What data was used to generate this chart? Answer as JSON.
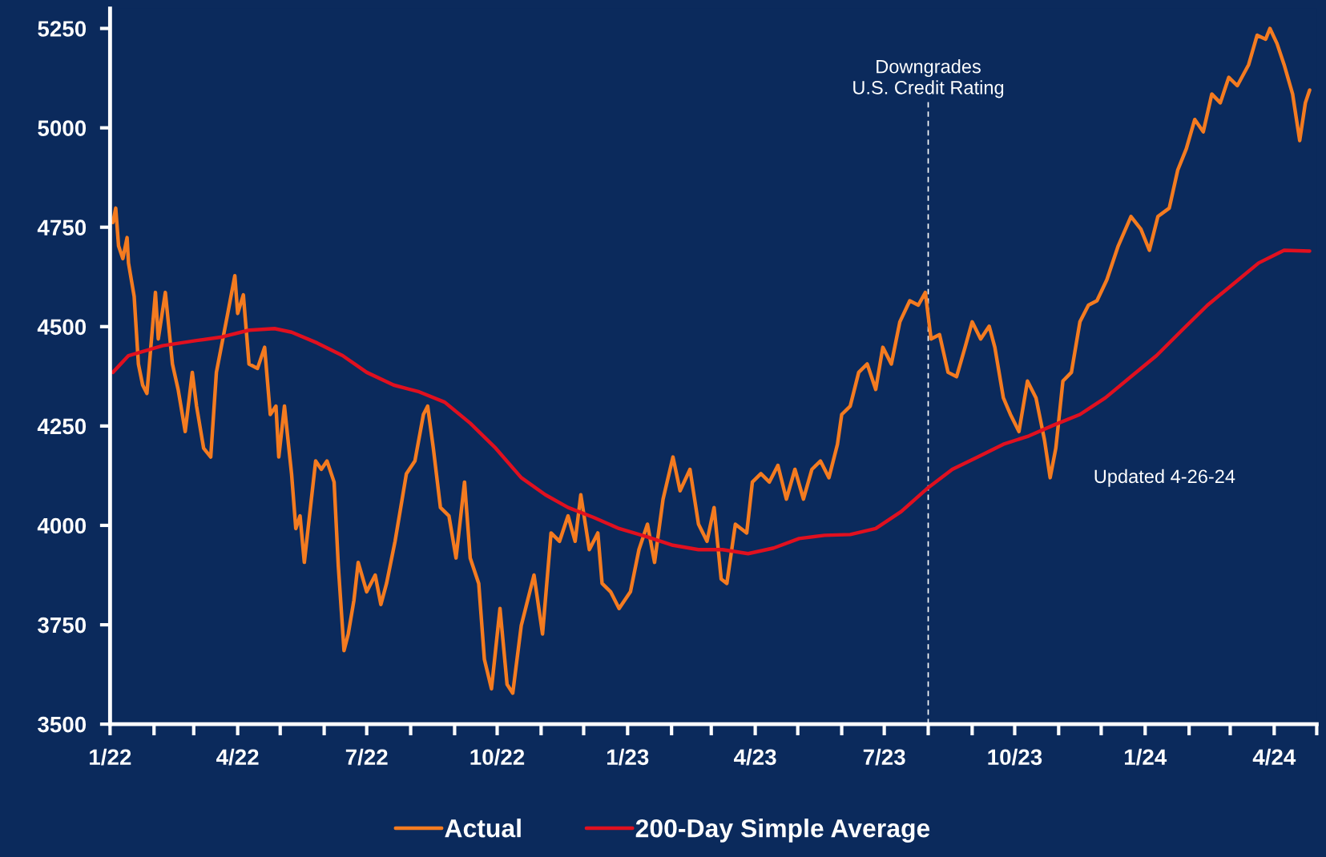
{
  "chart_data": {
    "type": "line",
    "xlim": [
      "2022-01-01",
      "2024-05-01"
    ],
    "ylim": [
      3500,
      5300
    ],
    "yticks": [
      3500,
      3750,
      4000,
      4250,
      4500,
      4750,
      5000,
      5250
    ],
    "xticks": [
      {
        "value": "2022-01-01",
        "label": "1/22"
      },
      {
        "value": "2022-02-01",
        "label": null
      },
      {
        "value": "2022-03-01",
        "label": null
      },
      {
        "value": "2022-04-01",
        "label": "4/22"
      },
      {
        "value": "2022-05-01",
        "label": null
      },
      {
        "value": "2022-06-01",
        "label": null
      },
      {
        "value": "2022-07-01",
        "label": "7/22"
      },
      {
        "value": "2022-08-01",
        "label": null
      },
      {
        "value": "2022-09-01",
        "label": null
      },
      {
        "value": "2022-10-01",
        "label": "10/22"
      },
      {
        "value": "2022-11-01",
        "label": null
      },
      {
        "value": "2022-12-01",
        "label": null
      },
      {
        "value": "2023-01-01",
        "label": "1/23"
      },
      {
        "value": "2023-02-01",
        "label": null
      },
      {
        "value": "2023-03-01",
        "label": null
      },
      {
        "value": "2023-04-01",
        "label": "4/23"
      },
      {
        "value": "2023-05-01",
        "label": null
      },
      {
        "value": "2023-06-01",
        "label": null
      },
      {
        "value": "2023-07-01",
        "label": "7/23"
      },
      {
        "value": "2023-08-01",
        "label": null
      },
      {
        "value": "2023-09-01",
        "label": null
      },
      {
        "value": "2023-10-01",
        "label": "10/23"
      },
      {
        "value": "2023-11-01",
        "label": null
      },
      {
        "value": "2023-12-01",
        "label": null
      },
      {
        "value": "2024-01-01",
        "label": "1/24"
      },
      {
        "value": "2024-02-01",
        "label": null
      },
      {
        "value": "2024-03-01",
        "label": null
      },
      {
        "value": "2024-04-01",
        "label": "4/24"
      },
      {
        "value": "2024-05-01",
        "label": null
      }
    ],
    "grid": false,
    "legend": "bottom",
    "series": [
      {
        "name": "Actual",
        "color": "#f47b20",
        "x": [
          "2022-01-03",
          "2022-01-05",
          "2022-01-07",
          "2022-01-10",
          "2022-01-13",
          "2022-01-14",
          "2022-01-18",
          "2022-01-21",
          "2022-01-24",
          "2022-01-27",
          "2022-02-02",
          "2022-02-04",
          "2022-02-09",
          "2022-02-14",
          "2022-02-18",
          "2022-02-23",
          "2022-02-28",
          "2022-03-03",
          "2022-03-08",
          "2022-03-13",
          "2022-03-17",
          "2022-03-25",
          "2022-03-30",
          "2022-04-01",
          "2022-04-05",
          "2022-04-09",
          "2022-04-15",
          "2022-04-20",
          "2022-04-24",
          "2022-04-28",
          "2022-04-30",
          "2022-05-04",
          "2022-05-09",
          "2022-05-12",
          "2022-05-15",
          "2022-05-18",
          "2022-05-21",
          "2022-05-26",
          "2022-05-30",
          "2022-06-03",
          "2022-06-08",
          "2022-06-11",
          "2022-06-15",
          "2022-06-18",
          "2022-06-22",
          "2022-06-25",
          "2022-07-01",
          "2022-07-07",
          "2022-07-11",
          "2022-07-15",
          "2022-07-21",
          "2022-07-26",
          "2022-07-29",
          "2022-08-04",
          "2022-08-10",
          "2022-08-13",
          "2022-08-17",
          "2022-08-22",
          "2022-08-28",
          "2022-09-02",
          "2022-09-08",
          "2022-09-12",
          "2022-09-18",
          "2022-09-22",
          "2022-09-27",
          "2022-10-03",
          "2022-10-08",
          "2022-10-12",
          "2022-10-18",
          "2022-10-27",
          "2022-11-02",
          "2022-11-08",
          "2022-11-14",
          "2022-11-20",
          "2022-11-25",
          "2022-11-29",
          "2022-12-05",
          "2022-12-11",
          "2022-12-14",
          "2022-12-20",
          "2022-12-26",
          "2023-01-03",
          "2023-01-09",
          "2023-01-15",
          "2023-01-20",
          "2023-01-26",
          "2023-02-02",
          "2023-02-07",
          "2023-02-14",
          "2023-02-20",
          "2023-02-26",
          "2023-03-03",
          "2023-03-08",
          "2023-03-12",
          "2023-03-18",
          "2023-03-26",
          "2023-03-30",
          "2023-04-05",
          "2023-04-11",
          "2023-04-17",
          "2023-04-23",
          "2023-04-29",
          "2023-05-05",
          "2023-05-11",
          "2023-05-17",
          "2023-05-23",
          "2023-05-29",
          "2023-06-01",
          "2023-06-07",
          "2023-06-13",
          "2023-06-19",
          "2023-06-25",
          "2023-06-30",
          "2023-07-06",
          "2023-07-12",
          "2023-07-19",
          "2023-07-25",
          "2023-07-30",
          "2023-08-03",
          "2023-08-09",
          "2023-08-15",
          "2023-08-21",
          "2023-08-27",
          "2023-09-01",
          "2023-09-07",
          "2023-09-13",
          "2023-09-17",
          "2023-09-23",
          "2023-09-28",
          "2023-10-04",
          "2023-10-10",
          "2023-10-16",
          "2023-10-22",
          "2023-10-26",
          "2023-10-30",
          "2023-11-04",
          "2023-11-10",
          "2023-11-16",
          "2023-11-22",
          "2023-11-28",
          "2023-12-05",
          "2023-12-13",
          "2023-12-22",
          "2023-12-29",
          "2024-01-04",
          "2024-01-10",
          "2024-01-18",
          "2024-01-24",
          "2024-01-30",
          "2024-02-05",
          "2024-02-11",
          "2024-02-17",
          "2024-02-23",
          "2024-02-29",
          "2024-03-06",
          "2024-03-14",
          "2024-03-20",
          "2024-03-26",
          "2024-03-29",
          "2024-04-03",
          "2024-04-08",
          "2024-04-14",
          "2024-04-19",
          "2024-04-23",
          "2024-04-26"
        ],
        "values": [
          4762,
          4798,
          4703,
          4671,
          4724,
          4660,
          4576,
          4406,
          4353,
          4332,
          4586,
          4469,
          4586,
          4406,
          4342,
          4236,
          4385,
          4300,
          4194,
          4172,
          4385,
          4533,
          4628,
          4533,
          4580,
          4406,
          4395,
          4448,
          4279,
          4300,
          4172,
          4300,
          4130,
          3992,
          4024,
          3907,
          4003,
          4162,
          4141,
          4162,
          4109,
          3897,
          3685,
          3727,
          3812,
          3907,
          3833,
          3875,
          3801,
          3854,
          3960,
          4066,
          4130,
          4162,
          4279,
          4300,
          4194,
          4045,
          4024,
          3918,
          4109,
          3918,
          3854,
          3663,
          3589,
          3791,
          3600,
          3578,
          3748,
          3875,
          3727,
          3981,
          3960,
          4024,
          3960,
          4077,
          3939,
          3981,
          3854,
          3833,
          3791,
          3833,
          3939,
          4003,
          3907,
          4066,
          4172,
          4087,
          4141,
          4003,
          3960,
          4045,
          3865,
          3854,
          4003,
          3981,
          4109,
          4130,
          4109,
          4151,
          4066,
          4141,
          4066,
          4141,
          4162,
          4120,
          4204,
          4279,
          4300,
          4385,
          4406,
          4342,
          4448,
          4406,
          4512,
          4565,
          4554,
          4586,
          4469,
          4480,
          4385,
          4374,
          4448,
          4512,
          4469,
          4501,
          4448,
          4321,
          4279,
          4236,
          4363,
          4321,
          4215,
          4120,
          4194,
          4363,
          4385,
          4512,
          4554,
          4565,
          4618,
          4703,
          4777,
          4745,
          4692,
          4777,
          4798,
          4894,
          4947,
          5021,
          4990,
          5085,
          5063,
          5127,
          5106,
          5159,
          5233,
          5223,
          5250,
          5212,
          5159,
          5085,
          4968,
          5063,
          5095
        ]
      },
      {
        "name": "200-Day Simple Average",
        "color": "#e0101f",
        "x": [
          "2022-01-03",
          "2022-01-14",
          "2022-02-07",
          "2022-03-03",
          "2022-03-21",
          "2022-04-09",
          "2022-04-27",
          "2022-05-09",
          "2022-05-27",
          "2022-06-14",
          "2022-07-01",
          "2022-07-20",
          "2022-08-07",
          "2022-08-25",
          "2022-09-12",
          "2022-09-30",
          "2022-10-18",
          "2022-11-04",
          "2022-11-20",
          "2022-12-08",
          "2022-12-26",
          "2023-01-15",
          "2023-02-02",
          "2023-02-20",
          "2023-03-09",
          "2023-03-27",
          "2023-04-14",
          "2023-05-02",
          "2023-05-20",
          "2023-06-07",
          "2023-06-25",
          "2023-07-13",
          "2023-07-31",
          "2023-08-18",
          "2023-09-05",
          "2023-09-23",
          "2023-10-11",
          "2023-10-29",
          "2023-11-16",
          "2023-12-04",
          "2023-12-22",
          "2024-01-09",
          "2024-01-27",
          "2024-02-14",
          "2024-03-03",
          "2024-03-21",
          "2024-04-08",
          "2024-04-26"
        ],
        "values": [
          4385,
          4427,
          4452,
          4465,
          4474,
          4491,
          4495,
          4486,
          4459,
          4427,
          4385,
          4353,
          4336,
          4310,
          4257,
          4194,
          4120,
          4077,
          4045,
          4020,
          3992,
          3971,
          3950,
          3939,
          3939,
          3929,
          3943,
          3967,
          3975,
          3977,
          3992,
          4035,
          4092,
          4141,
          4172,
          4204,
          4225,
          4253,
          4279,
          4321,
          4374,
          4427,
          4491,
          4554,
          4607,
          4660,
          4692,
          4690
        ]
      }
    ],
    "ref_lines": [
      {
        "axis": "x",
        "value": "2023-08-01",
        "label": "Downgrades\nU.S. Credit Rating",
        "color": "#ffffff",
        "line_style": "dashed"
      }
    ],
    "annotations": [
      "Updated 4-26-24"
    ]
  }
}
